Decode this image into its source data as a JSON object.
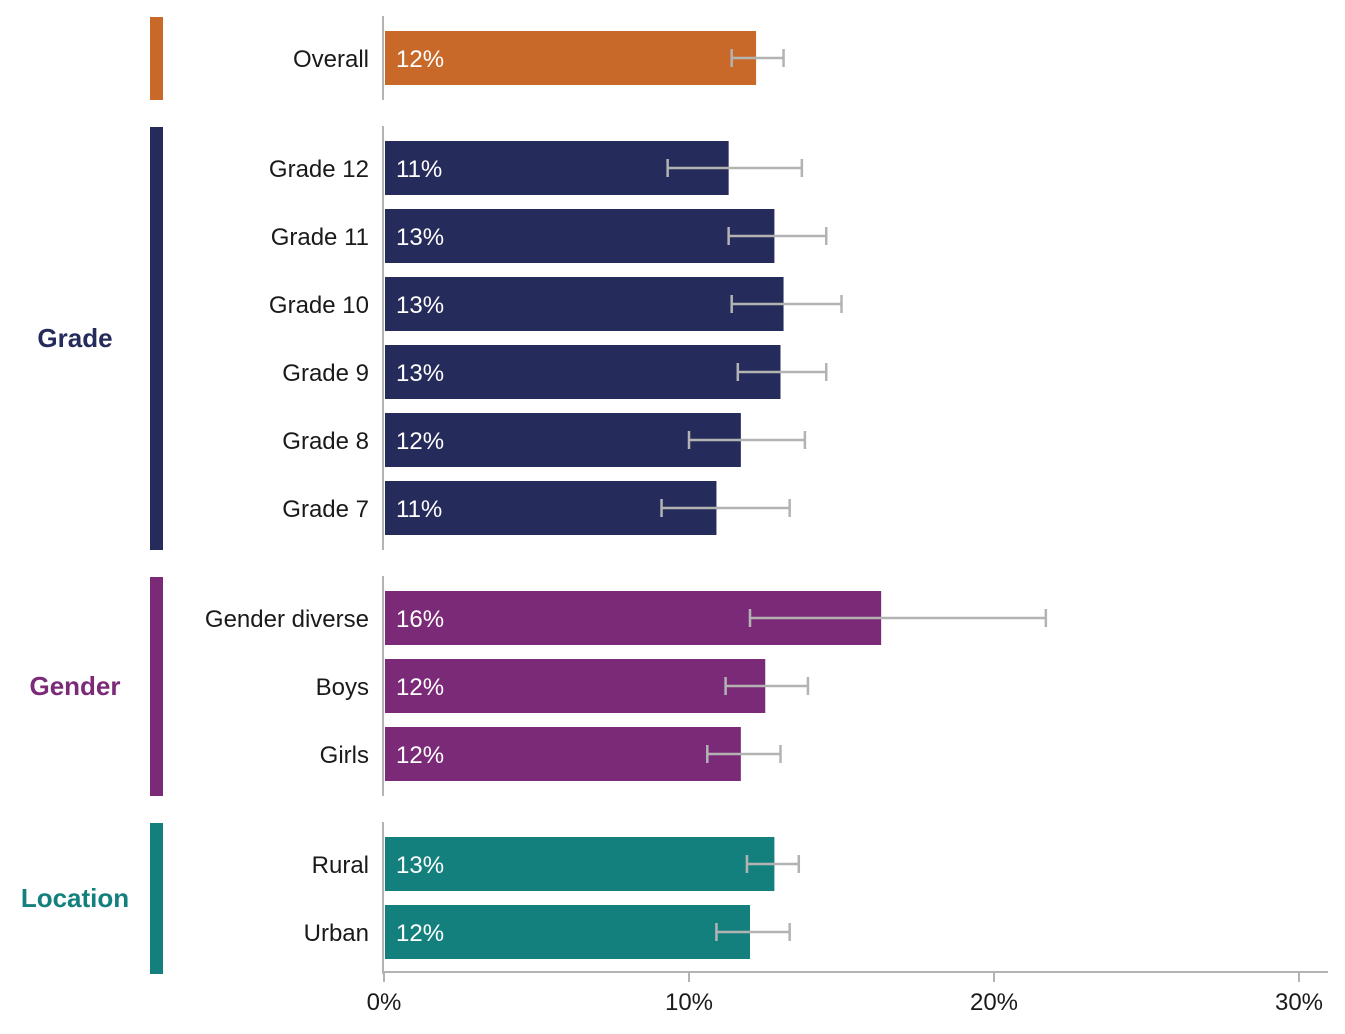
{
  "chart_data": {
    "type": "bar",
    "orientation": "horizontal",
    "xlim": [
      0,
      30
    ],
    "x_ticks": [
      {
        "value": 0,
        "label": "0%"
      },
      {
        "value": 10,
        "label": "10%"
      },
      {
        "value": 20,
        "label": "20%"
      },
      {
        "value": 30,
        "label": "30%"
      }
    ],
    "groups": [
      {
        "name": "",
        "color": "#C8692A",
        "bars": [
          {
            "label": "Overall",
            "value": 12.2,
            "value_label": "12%",
            "ci_low": 11.4,
            "ci_high": 13.1
          }
        ]
      },
      {
        "name": "Grade",
        "color": "#252B5A",
        "bars": [
          {
            "label": "Grade 12",
            "value": 11.3,
            "value_label": "11%",
            "ci_low": 9.3,
            "ci_high": 13.7
          },
          {
            "label": "Grade 11",
            "value": 12.8,
            "value_label": "13%",
            "ci_low": 11.3,
            "ci_high": 14.5
          },
          {
            "label": "Grade 10",
            "value": 13.1,
            "value_label": "13%",
            "ci_low": 11.4,
            "ci_high": 15.0
          },
          {
            "label": "Grade 9",
            "value": 13.0,
            "value_label": "13%",
            "ci_low": 11.6,
            "ci_high": 14.5
          },
          {
            "label": "Grade 8",
            "value": 11.7,
            "value_label": "12%",
            "ci_low": 10.0,
            "ci_high": 13.8
          },
          {
            "label": "Grade 7",
            "value": 10.9,
            "value_label": "11%",
            "ci_low": 9.1,
            "ci_high": 13.3
          }
        ]
      },
      {
        "name": "Gender",
        "color": "#7B2A78",
        "bars": [
          {
            "label": "Gender diverse",
            "value": 16.3,
            "value_label": "16%",
            "ci_low": 12.0,
            "ci_high": 21.7
          },
          {
            "label": "Boys",
            "value": 12.5,
            "value_label": "12%",
            "ci_low": 11.2,
            "ci_high": 13.9
          },
          {
            "label": "Girls",
            "value": 11.7,
            "value_label": "12%",
            "ci_low": 10.6,
            "ci_high": 13.0
          }
        ]
      },
      {
        "name": "Location",
        "color": "#14807E",
        "bars": [
          {
            "label": "Rural",
            "value": 12.8,
            "value_label": "13%",
            "ci_low": 11.9,
            "ci_high": 13.6
          },
          {
            "label": "Urban",
            "value": 12.0,
            "value_label": "12%",
            "ci_low": 10.9,
            "ci_high": 13.3
          }
        ]
      }
    ],
    "error_bar_color": "#B3B3B3",
    "axis_color": "#B3B3B3"
  }
}
